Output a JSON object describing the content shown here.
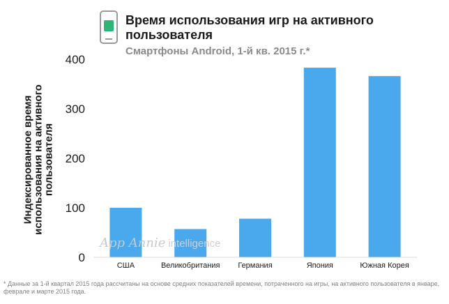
{
  "header": {
    "title": "Время использования игр на активного пользователя",
    "subtitle": "Смартфоны Android, 1-й кв. 2015 г.*",
    "icon": "smartphone-icon"
  },
  "watermark": {
    "brand": "App Annie",
    "suffix": "intelligence"
  },
  "footnote": "* Данные за 1-й квартал 2015 года рассчитаны на основе средних показателей времени, потраченного на игры, на активного пользователя в январе, феврале и марте 2015 года.",
  "colors": {
    "bar": "#4aa8ec",
    "icon_screen": "#2bb673"
  },
  "chart_data": {
    "type": "bar",
    "title": "Время использования игр на активного пользователя",
    "subtitle": "Смартфоны Android, 1-й кв. 2015 г.*",
    "xlabel": "",
    "ylabel": "Индексированное время использования на активного пользователя",
    "categories": [
      "США",
      "Великобритания",
      "Германия",
      "Япония",
      "Южная Корея"
    ],
    "values": [
      100,
      57,
      78,
      383,
      366
    ],
    "ylim": [
      0,
      400
    ],
    "yticks": [
      0,
      100,
      200,
      300,
      400
    ],
    "grid": false,
    "legend": "none"
  }
}
